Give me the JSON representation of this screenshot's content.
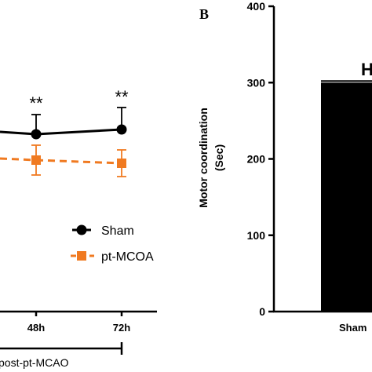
{
  "chart_data": [
    {
      "type": "line",
      "panel_label": "",
      "categories": [
        "48h",
        "72h"
      ],
      "series": [
        {
          "name": "Sham",
          "color": "#000000",
          "marker": "circle",
          "line": "solid",
          "values": [
            0.62,
            0.64
          ],
          "errors": [
            0.12,
            0.12
          ]
        },
        {
          "name": "pt-MCOA",
          "color": "#f07a21",
          "marker": "square",
          "line": "dashed",
          "values": [
            0.45,
            0.44
          ],
          "errors": [
            0.09,
            0.08
          ]
        }
      ],
      "significance": [
        "**",
        "**"
      ],
      "xlabel": "post-pt-MCAO",
      "ylabel": "",
      "legend": "bottom-right"
    },
    {
      "type": "bar",
      "panel_label": "B",
      "categories": [
        "Sham"
      ],
      "values": [
        300
      ],
      "errors": [
        2
      ],
      "color": "#000000",
      "ylabel_lines": [
        "Motor coordination",
        "(Sec)"
      ],
      "ylim": [
        0,
        400
      ],
      "yticks": [
        "0",
        "100",
        "200",
        "300",
        "400"
      ],
      "annotation": "H"
    }
  ]
}
